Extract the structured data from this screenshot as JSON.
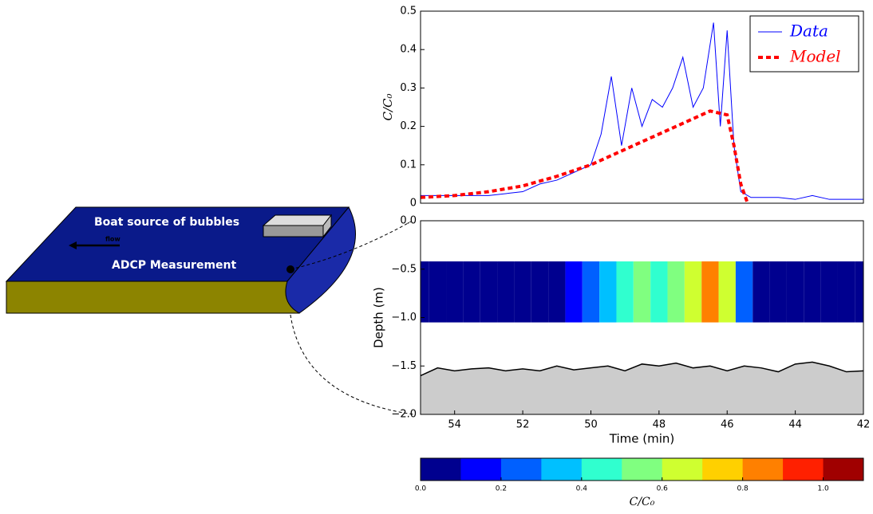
{
  "chart_data": [
    {
      "type": "line",
      "ylabel": "C/C₀",
      "xlim": [
        55,
        42
      ],
      "ylim": [
        0,
        0.5
      ],
      "yticks": [
        0,
        0.1,
        0.2,
        0.3,
        0.4,
        0.5
      ],
      "legend": "upper right",
      "series": [
        {
          "name": "Data",
          "color": "#0000ff",
          "style": "solid",
          "x": [
            55,
            54,
            53,
            52,
            51.5,
            51,
            50.5,
            50,
            49.7,
            49.4,
            49.1,
            48.8,
            48.5,
            48.2,
            47.9,
            47.6,
            47.3,
            47,
            46.7,
            46.4,
            46.2,
            46,
            45.8,
            45.6,
            45.3,
            44.5,
            44,
            43.5,
            43,
            42
          ],
          "values": [
            0.02,
            0.02,
            0.02,
            0.03,
            0.05,
            0.06,
            0.08,
            0.1,
            0.18,
            0.33,
            0.15,
            0.3,
            0.2,
            0.27,
            0.25,
            0.3,
            0.38,
            0.25,
            0.3,
            0.47,
            0.2,
            0.45,
            0.15,
            0.03,
            0.015,
            0.015,
            0.01,
            0.02,
            0.01,
            0.01
          ]
        },
        {
          "name": "Model",
          "color": "#ff0000",
          "style": "dashed",
          "x": [
            55,
            54,
            53,
            52,
            51,
            50,
            49,
            48,
            47,
            46.5,
            46,
            45.8,
            45.6,
            45.4
          ],
          "values": [
            0.015,
            0.02,
            0.03,
            0.045,
            0.07,
            0.1,
            0.14,
            0.18,
            0.22,
            0.24,
            0.23,
            0.15,
            0.05,
            0
          ]
        }
      ]
    },
    {
      "type": "heatmap",
      "xlabel": "Time (min)",
      "ylabel": "Depth (m)",
      "xlim": [
        55,
        42
      ],
      "ylim": [
        -2,
        0
      ],
      "xticks": [
        54,
        52,
        50,
        48,
        46,
        44,
        42
      ],
      "yticks": [
        {
          "value": -2,
          "label": "−2.0"
        },
        {
          "value": -1.5,
          "label": "−1.5"
        },
        {
          "value": -1,
          "label": "−1.0"
        },
        {
          "value": -0.5,
          "label": "−0.5"
        },
        {
          "value": 0,
          "label": "0.0"
        }
      ],
      "data_depth_range": [
        -0.42,
        -1.05
      ],
      "x": [
        55,
        54.5,
        54,
        53.5,
        53,
        52.5,
        52,
        51.5,
        51,
        50.5,
        50,
        49.5,
        49,
        48.5,
        48,
        47.5,
        47,
        46.5,
        46,
        45.5,
        45,
        44.5,
        44,
        43.5,
        43,
        42.5,
        42
      ],
      "values": [
        0,
        0,
        0,
        0,
        0,
        0,
        0,
        0,
        0.05,
        0.1,
        0.2,
        0.3,
        0.4,
        0.5,
        0.45,
        0.5,
        0.6,
        0.8,
        0.6,
        0.2,
        0,
        0,
        0,
        0,
        0,
        0,
        0
      ],
      "bed": {
        "color": "#000000",
        "fill": "#cccccc",
        "values": [
          -1.6,
          -1.52,
          -1.55,
          -1.53,
          -1.52,
          -1.55,
          -1.53,
          -1.55,
          -1.5,
          -1.54,
          -1.52,
          -1.5,
          -1.55,
          -1.48,
          -1.5,
          -1.47,
          -1.52,
          -1.5,
          -1.55,
          -1.5,
          -1.52,
          -1.56,
          -1.48,
          -1.46,
          -1.5,
          -1.56,
          -1.55
        ]
      }
    },
    {
      "type": "colorbar",
      "label": "C/C₀",
      "lim": [
        0,
        1.1
      ],
      "ticks": [
        {
          "value": 0,
          "label": "0.0"
        },
        {
          "value": 0.2,
          "label": "0.2"
        },
        {
          "value": 0.4,
          "label": "0.4"
        },
        {
          "value": 0.6,
          "label": "0.6"
        },
        {
          "value": 0.8,
          "label": "0.8"
        },
        {
          "value": 1,
          "label": "1.0"
        }
      ],
      "colors": [
        "#00008f",
        "#0000ff",
        "#0060ff",
        "#00c0ff",
        "#30ffcf",
        "#80ff80",
        "#cfff30",
        "#ffd000",
        "#ff8000",
        "#ff2000",
        "#a00000"
      ]
    }
  ],
  "diagram": {
    "boat": "Boat source of bubbles",
    "flow": "flow",
    "adcp": "ADCP Measurement"
  }
}
